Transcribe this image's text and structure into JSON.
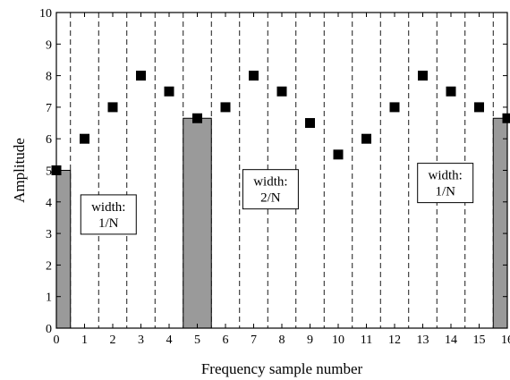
{
  "chart_data": {
    "type": "scatter",
    "xlabel": "Frequency sample number",
    "ylabel": "Amplitude",
    "xlim": [
      0,
      16
    ],
    "ylim": [
      0,
      10
    ],
    "x_ticks": [
      0,
      1,
      2,
      3,
      4,
      5,
      6,
      7,
      8,
      9,
      10,
      11,
      12,
      13,
      14,
      15,
      16
    ],
    "y_ticks": [
      0,
      1,
      2,
      3,
      4,
      5,
      6,
      7,
      8,
      9,
      10
    ],
    "points": [
      {
        "x": 0,
        "y": 5.0
      },
      {
        "x": 1,
        "y": 6.0
      },
      {
        "x": 2,
        "y": 7.0
      },
      {
        "x": 3,
        "y": 8.0
      },
      {
        "x": 4,
        "y": 7.5
      },
      {
        "x": 5,
        "y": 6.65
      },
      {
        "x": 6,
        "y": 7.0
      },
      {
        "x": 7,
        "y": 8.0
      },
      {
        "x": 8,
        "y": 7.5
      },
      {
        "x": 9,
        "y": 6.5
      },
      {
        "x": 10,
        "y": 5.5
      },
      {
        "x": 11,
        "y": 6.0
      },
      {
        "x": 12,
        "y": 7.0
      },
      {
        "x": 13,
        "y": 8.0
      },
      {
        "x": 14,
        "y": 7.5
      },
      {
        "x": 15,
        "y": 7.0
      },
      {
        "x": 16,
        "y": 6.65
      }
    ],
    "bars": [
      {
        "x_start": 0,
        "x_end": 0.5,
        "height": 5.0
      },
      {
        "x_start": 4.5,
        "x_end": 5.5,
        "height": 6.65
      },
      {
        "x_start": 15.5,
        "x_end": 16,
        "height": 6.65
      }
    ],
    "dashed_lines_x": [
      0.5,
      1.5,
      2.5,
      3.5,
      4.5,
      5.5,
      6.5,
      7.5,
      8.5,
      9.5,
      10.5,
      11.5,
      12.5,
      13.5,
      14.5,
      15.5
    ],
    "annotations": [
      {
        "lines": [
          "width:",
          "1/N"
        ],
        "x": 1.85,
        "y": 3.6
      },
      {
        "lines": [
          "width:",
          "2/N"
        ],
        "x": 7.6,
        "y": 4.4
      },
      {
        "lines": [
          "width:",
          "1/N"
        ],
        "x": 13.8,
        "y": 4.6
      }
    ],
    "colors": {
      "bar_fill": "#9a9a9a",
      "marker": "#000000",
      "line": "#000000"
    }
  }
}
